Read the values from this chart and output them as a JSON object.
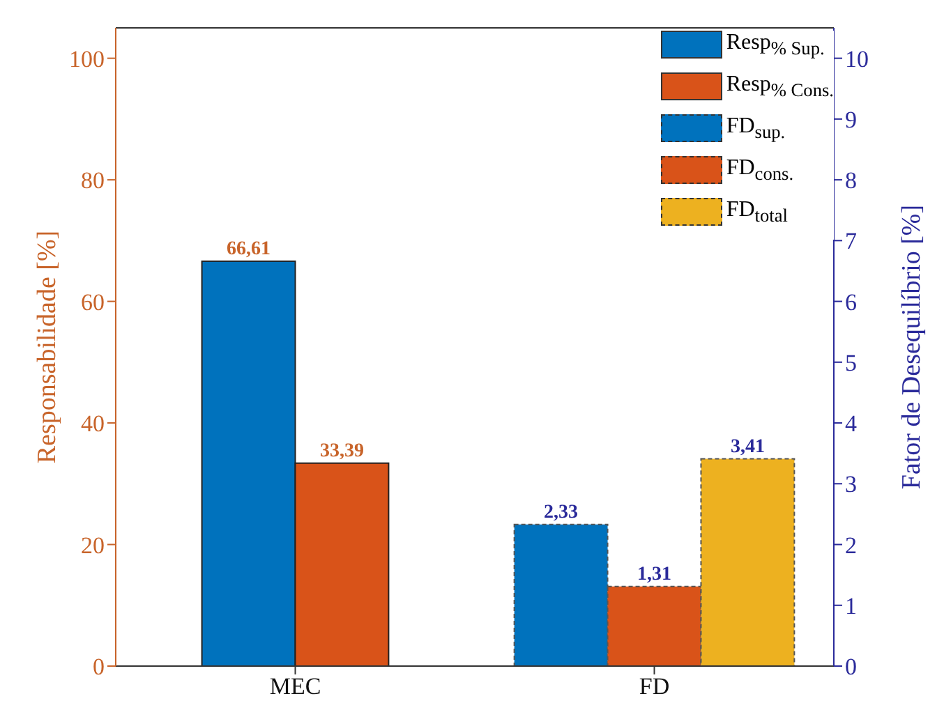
{
  "chart_data": {
    "type": "bar",
    "ylabel": "Responsabilidade [%]",
    "y2label": "Fator de Desequilíbrio [%]",
    "categories": [
      "MEC",
      "FD"
    ],
    "series": [
      {
        "name": "Resp$_{% Sup.}$",
        "color": "#0072bd",
        "values": [
          66.61,
          null
        ],
        "value_labels": [
          "66,61",
          null
        ]
      },
      {
        "name": "Resp$_{% Cons.}$",
        "color": "#d95319",
        "values": [
          33.39,
          null
        ],
        "value_labels": [
          "33,39",
          null
        ]
      },
      {
        "name": "FD$_{sup.}$",
        "color": "#0072bd",
        "values": [
          null,
          2.33
        ],
        "axis": "y2",
        "line_style": "dashed",
        "value_labels": [
          null,
          "2,33"
        ]
      },
      {
        "name": "FD$_{cons.}$",
        "color": "#d95319",
        "values": [
          null,
          1.31
        ],
        "axis": "y2",
        "line_style": "dashed",
        "value_labels": [
          null,
          "1,31"
        ]
      },
      {
        "name": "FD$_{total}$",
        "color": "#edb120",
        "values": [
          null,
          3.41
        ],
        "axis": "y2",
        "line_style": "dashed",
        "value_labels": [
          null,
          "3,41"
        ]
      }
    ],
    "ylim": [
      0,
      105
    ],
    "yticks": [
      0,
      20,
      40,
      60,
      80,
      100
    ],
    "y2lim": [
      0,
      10.5
    ],
    "y2ticks": [
      0,
      1,
      2,
      3,
      4,
      5,
      6,
      7,
      8,
      9,
      10
    ],
    "legend": "top right"
  }
}
